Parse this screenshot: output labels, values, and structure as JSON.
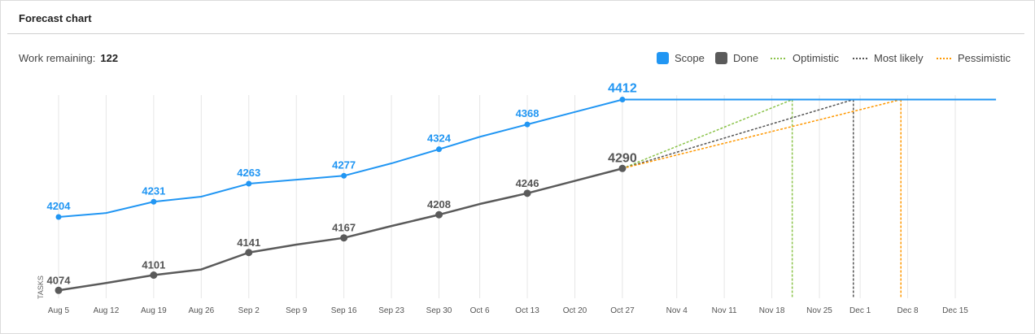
{
  "header": {
    "title": "Forecast chart"
  },
  "summary": {
    "label": "Work remaining:",
    "value": "122"
  },
  "legend": {
    "scope": "Scope",
    "done": "Done",
    "optimistic": "Optimistic",
    "most_likely": "Most likely",
    "pessimistic": "Pessimistic"
  },
  "colors": {
    "scope": "#2196f3",
    "done": "#5a5a5a",
    "optimistic": "#8bc34a",
    "most_likely": "#555555",
    "pessimistic": "#ff9800"
  },
  "chart_data": {
    "type": "line",
    "ylabel": "TASKS",
    "x_ticks": [
      "Aug 5",
      "Aug 12",
      "Aug 19",
      "Aug 26",
      "Sep 2",
      "Sep 9",
      "Sep 16",
      "Sep 23",
      "Sep 30",
      "Oct 6",
      "Oct 13",
      "Oct 20",
      "Oct 27",
      "Nov 4",
      "Nov 11",
      "Nov 18",
      "Nov 25",
      "Dec 1",
      "Dec 8",
      "Dec 15"
    ],
    "ylim": [
      4060,
      4420
    ],
    "series": [
      {
        "name": "Scope",
        "x": [
          "Aug 5",
          "Aug 12",
          "Aug 19",
          "Aug 26",
          "Sep 2",
          "Sep 9",
          "Sep 16",
          "Sep 23",
          "Sep 30",
          "Oct 6",
          "Oct 13",
          "Oct 20",
          "Oct 27"
        ],
        "y": [
          4204,
          4211,
          4231,
          4240,
          4263,
          4270,
          4277,
          4299,
          4324,
          4346,
          4368,
          4390,
          4412
        ],
        "labeled": [
          "Aug 5",
          "Aug 19",
          "Sep 2",
          "Sep 16",
          "Sep 30",
          "Oct 13",
          "Oct 27"
        ],
        "extend_to": "Dec 21"
      },
      {
        "name": "Done",
        "x": [
          "Aug 5",
          "Aug 12",
          "Aug 19",
          "Aug 26",
          "Sep 2",
          "Sep 9",
          "Sep 16",
          "Sep 23",
          "Sep 30",
          "Oct 6",
          "Oct 13",
          "Oct 20",
          "Oct 27"
        ],
        "y": [
          4074,
          4087,
          4101,
          4111,
          4141,
          4155,
          4167,
          4188,
          4208,
          4227,
          4246,
          4268,
          4290
        ],
        "labeled": [
          "Aug 5",
          "Aug 19",
          "Sep 2",
          "Sep 16",
          "Sep 30",
          "Oct 13",
          "Oct 27"
        ]
      }
    ],
    "forecasts": [
      {
        "name": "Optimistic",
        "from": [
          "Oct 27",
          4290
        ],
        "to": [
          "Nov 21",
          4412
        ]
      },
      {
        "name": "Most likely",
        "from": [
          "Oct 27",
          4290
        ],
        "to": [
          "Nov 30",
          4412
        ]
      },
      {
        "name": "Pessimistic",
        "from": [
          "Oct 27",
          4290
        ],
        "to": [
          "Dec 7",
          4412
        ]
      }
    ]
  }
}
